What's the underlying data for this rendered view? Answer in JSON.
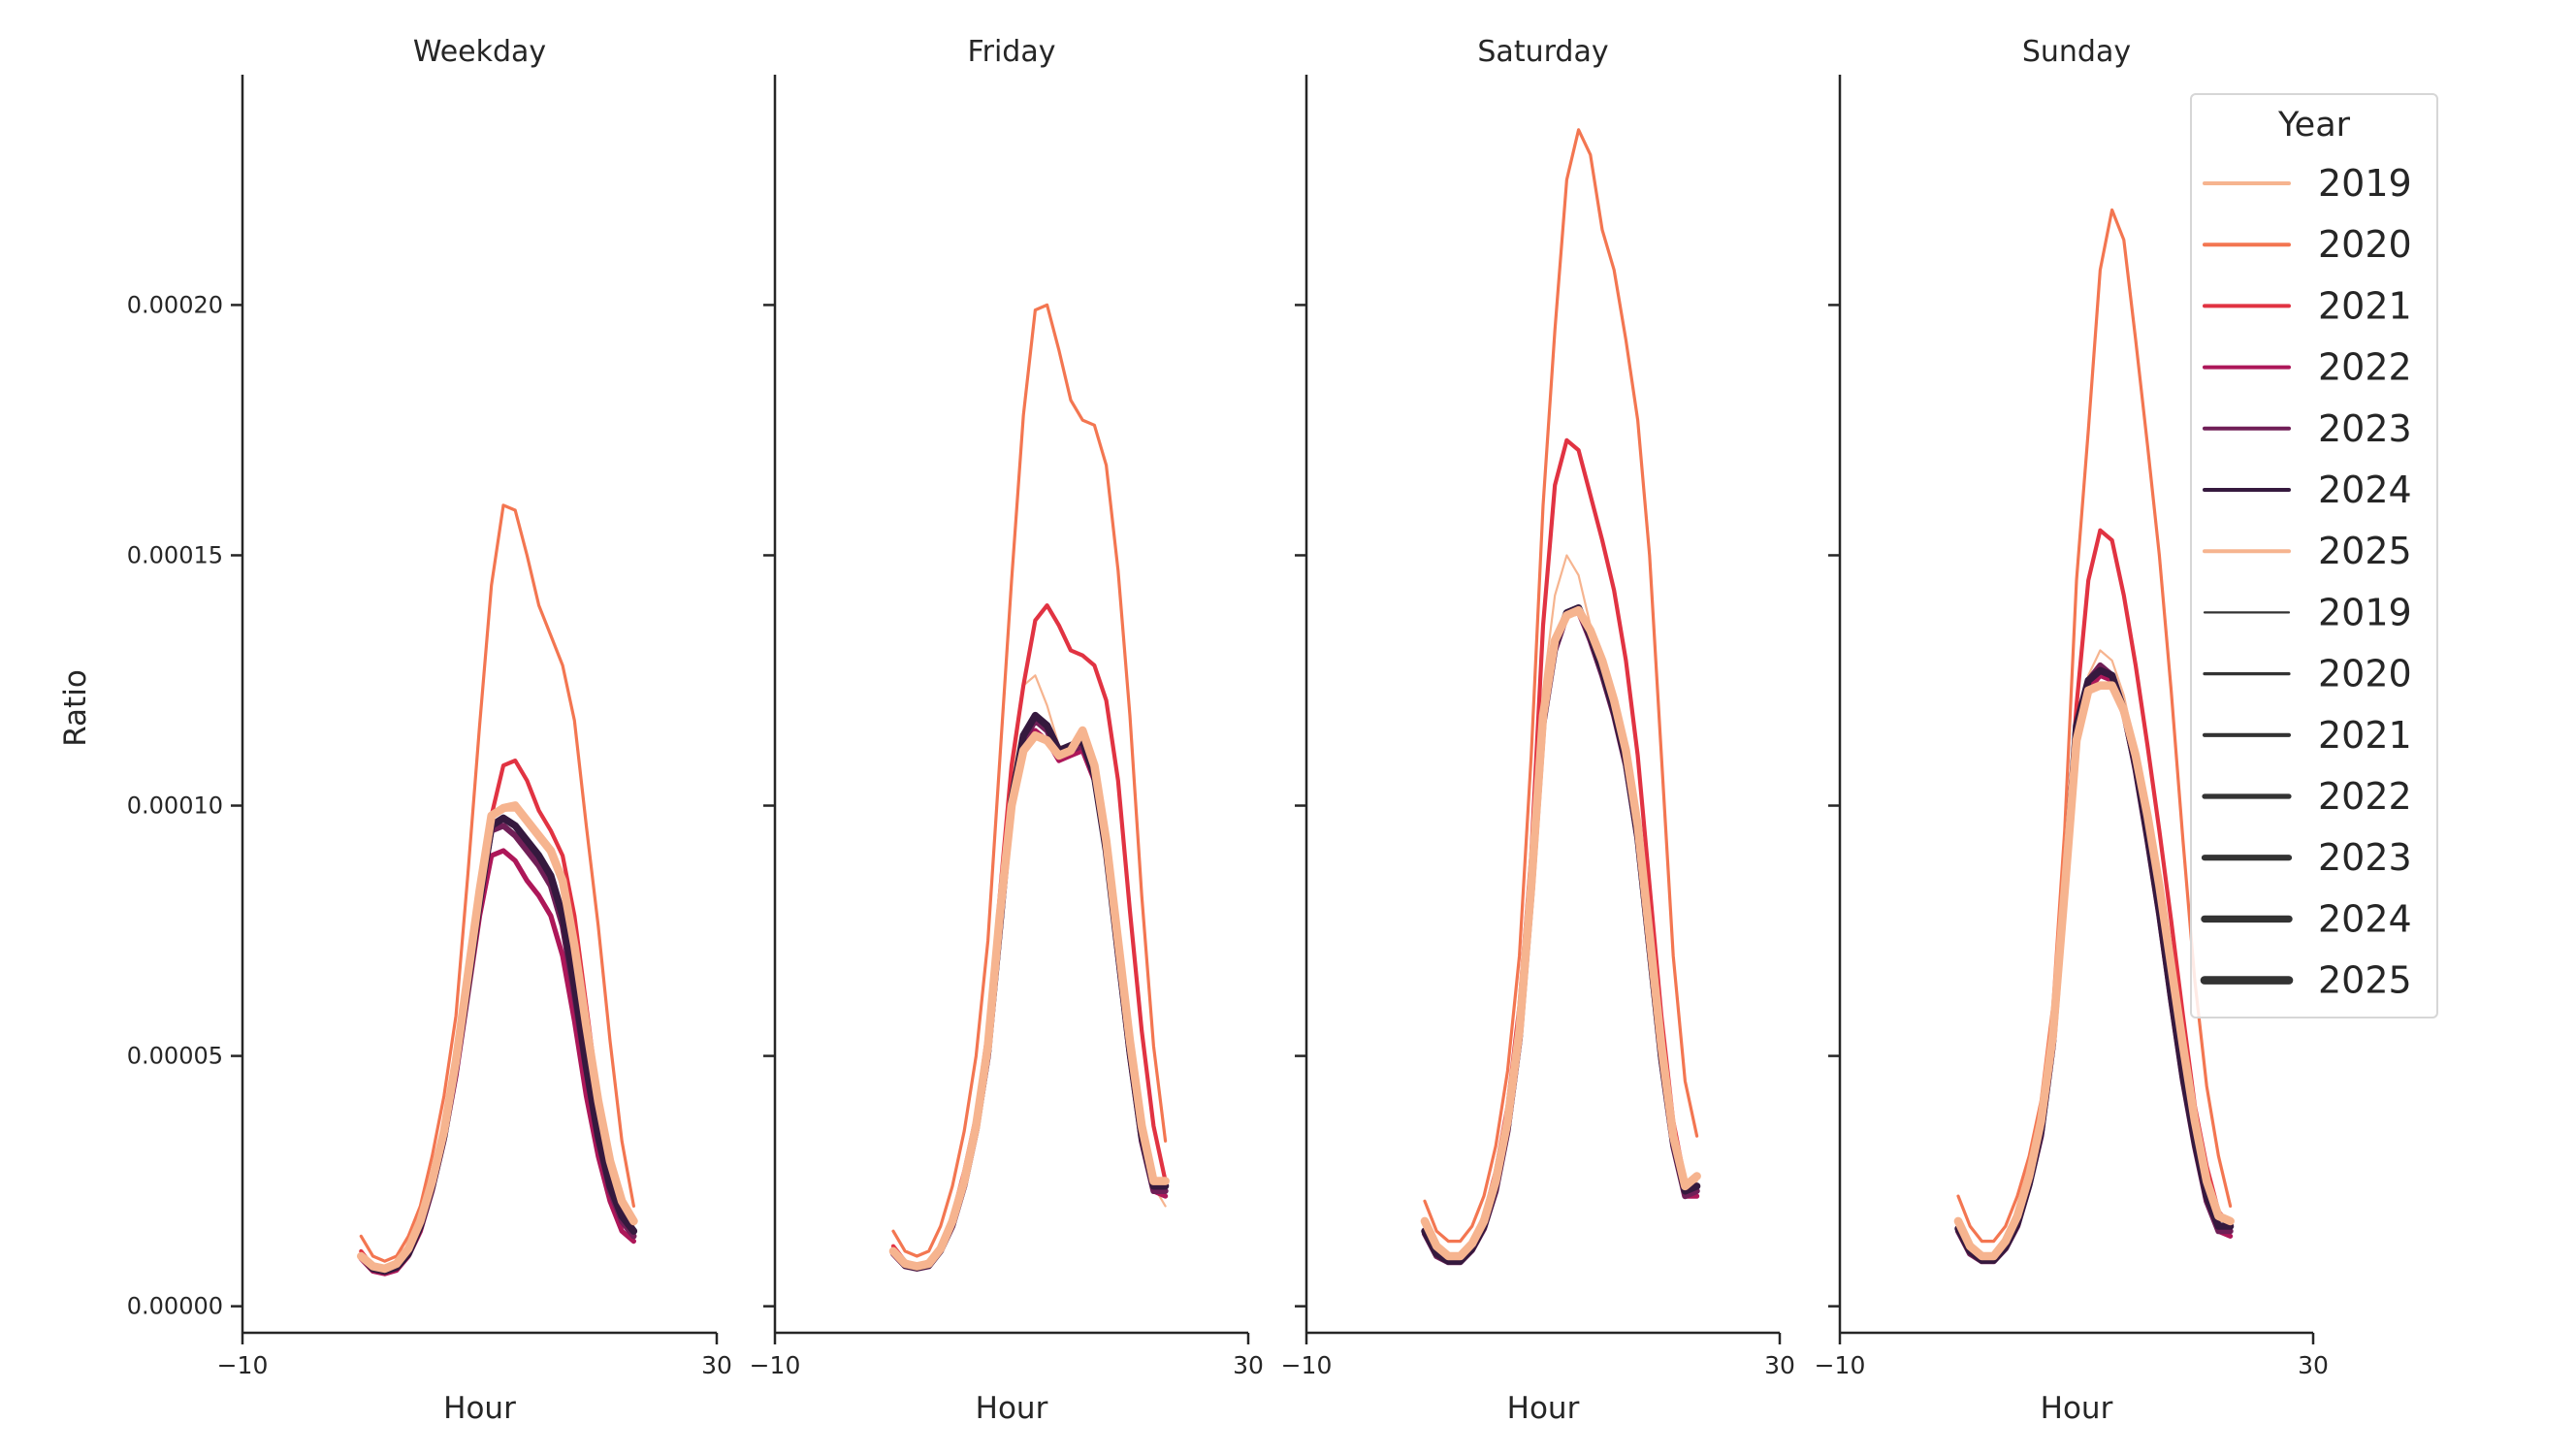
{
  "chart_data": {
    "type": "line",
    "ylabel": "Ratio",
    "xlabel": "Hour",
    "xlim": [
      -10,
      30
    ],
    "ylim": [
      -5.3e-06,
      0.000246
    ],
    "xticks": [
      -10,
      30
    ],
    "xtick_labels": [
      "−10",
      "30"
    ],
    "yticks": [
      0,
      5e-05,
      0.0001,
      0.00015,
      0.0002
    ],
    "ytick_labels": [
      "0.00000",
      "0.00005",
      "0.00010",
      "0.00015",
      "0.00020"
    ],
    "grid": false,
    "x": [
      0,
      1,
      2,
      3,
      4,
      5,
      6,
      7,
      8,
      9,
      10,
      11,
      12,
      13,
      14,
      15,
      16,
      17,
      18,
      19,
      20,
      21,
      22,
      23
    ],
    "legend": {
      "title": "Year",
      "placement": "right",
      "hue_entries": [
        "2019",
        "2020",
        "2021",
        "2022",
        "2023",
        "2024",
        "2025"
      ],
      "size_entries": [
        "2019",
        "2020",
        "2021",
        "2022",
        "2023",
        "2024",
        "2025"
      ]
    },
    "series_style": {
      "colors": [
        "#f6b48f",
        "#f37651",
        "#e13342",
        "#ad1759",
        "#701f57",
        "#35193e",
        "#f6b48f"
      ],
      "size_legend_color": "#333333"
    },
    "panels": [
      {
        "title": "Weekday",
        "series": [
          {
            "name": "2019",
            "values": [
              1e-05,
              8e-06,
              7.5e-06,
              8.5e-06,
              1.15e-05,
              1.7e-05,
              2.5e-05,
              3.5e-05,
              4.9e-05,
              6.6e-05,
              8.3e-05,
              9.8e-05,
              9.9e-05,
              9.9e-05,
              9.6e-05,
              9.3e-05,
              9e-05,
              8.4e-05,
              7.1e-05,
              5.5e-05,
              4e-05,
              2.8e-05,
              2e-05,
              1.6e-05
            ]
          },
          {
            "name": "2020",
            "values": [
              1.4e-05,
              1e-05,
              9e-06,
              1e-05,
              1.4e-05,
              2e-05,
              3e-05,
              4.2e-05,
              5.8e-05,
              8.6e-05,
              0.000116,
              0.000144,
              0.00016,
              0.000159,
              0.00015,
              0.00014,
              0.000134,
              0.000128,
              0.000117,
              9.6e-05,
              7.6e-05,
              5.3e-05,
              3.3e-05,
              2e-05
            ]
          },
          {
            "name": "2021",
            "values": [
              1.1e-05,
              8e-06,
              7e-06,
              8e-06,
              1.1e-05,
              1.6e-05,
              2.4e-05,
              3.4e-05,
              4.8e-05,
              6.5e-05,
              8.3e-05,
              9.8e-05,
              0.000108,
              0.000109,
              0.000105,
              9.9e-05,
              9.5e-05,
              9e-05,
              7.8e-05,
              6e-05,
              4.2e-05,
              2.8e-05,
              1.9e-05,
              1.5e-05
            ]
          },
          {
            "name": "2022",
            "values": [
              9.5e-06,
              7e-06,
              6.5e-06,
              7.2e-06,
              1e-05,
              1.5e-05,
              2.3e-05,
              3.3e-05,
              4.6e-05,
              6.2e-05,
              7.8e-05,
              9e-05,
              9.1e-05,
              8.9e-05,
              8.5e-05,
              8.2e-05,
              7.8e-05,
              7e-05,
              5.7e-05,
              4.2e-05,
              3e-05,
              2.1e-05,
              1.5e-05,
              1.3e-05
            ]
          },
          {
            "name": "2023",
            "values": [
              1e-05,
              7.5e-06,
              7e-06,
              7.8e-06,
              1.05e-05,
              1.6e-05,
              2.4e-05,
              3.4e-05,
              4.8e-05,
              6.4e-05,
              8.1e-05,
              9.5e-05,
              9.6e-05,
              9.4e-05,
              9.1e-05,
              8.8e-05,
              8.4e-05,
              7.6e-05,
              6.2e-05,
              4.7e-05,
              3.3e-05,
              2.3e-05,
              1.7e-05,
              1.4e-05
            ]
          },
          {
            "name": "2024",
            "values": [
              1e-05,
              7.5e-06,
              7e-06,
              7.8e-06,
              1.05e-05,
              1.6e-05,
              2.4e-05,
              3.4e-05,
              4.8e-05,
              6.4e-05,
              8.1e-05,
              9.6e-05,
              9.75e-05,
              9.6e-05,
              9.3e-05,
              9e-05,
              8.6e-05,
              7.8e-05,
              6.4e-05,
              4.8e-05,
              3.4e-05,
              2.4e-05,
              1.8e-05,
              1.5e-05
            ]
          },
          {
            "name": "2025",
            "values": [
              1e-05,
              8e-06,
              7.5e-06,
              8.5e-06,
              1.15e-05,
              1.7e-05,
              2.5e-05,
              3.5e-05,
              4.9e-05,
              6.6e-05,
              8.3e-05,
              9.8e-05,
              9.95e-05,
              0.0001,
              9.7e-05,
              9.4e-05,
              9.1e-05,
              8.5e-05,
              7.2e-05,
              5.6e-05,
              4.1e-05,
              2.9e-05,
              2.1e-05,
              1.7e-05
            ]
          }
        ]
      },
      {
        "title": "Friday",
        "series": [
          {
            "name": "2019",
            "values": [
              1.2e-05,
              9e-06,
              8.5e-06,
              9e-06,
              1.2e-05,
              1.8e-05,
              2.6e-05,
              3.7e-05,
              5.3e-05,
              8e-05,
              0.000105,
              0.000124,
              0.000126,
              0.00012,
              0.000112,
              0.000111,
              0.000114,
              0.000108,
              9.2e-05,
              7e-05,
              5e-05,
              3.4e-05,
              2.4e-05,
              2e-05
            ]
          },
          {
            "name": "2020",
            "values": [
              1.5e-05,
              1.1e-05,
              1e-05,
              1.1e-05,
              1.6e-05,
              2.4e-05,
              3.5e-05,
              5e-05,
              7.3e-05,
              0.000109,
              0.000145,
              0.000178,
              0.000199,
              0.0002,
              0.000191,
              0.000181,
              0.000177,
              0.000176,
              0.000168,
              0.000147,
              0.000118,
              8.2e-05,
              5.2e-05,
              3.3e-05
            ]
          },
          {
            "name": "2021",
            "values": [
              1.2e-05,
              9e-06,
              8e-06,
              9e-06,
              1.2e-05,
              1.8e-05,
              2.7e-05,
              3.8e-05,
              5.5e-05,
              8.2e-05,
              0.000108,
              0.000124,
              0.000137,
              0.00014,
              0.000136,
              0.000131,
              0.00013,
              0.000128,
              0.000121,
              0.000105,
              7.9e-05,
              5.5e-05,
              3.6e-05,
              2.5e-05
            ]
          },
          {
            "name": "2022",
            "values": [
              1.05e-05,
              8e-06,
              7.5e-06,
              8e-06,
              1.1e-05,
              1.6e-05,
              2.4e-05,
              3.5e-05,
              5e-05,
              7.5e-05,
              0.0001,
              0.000112,
              0.000115,
              0.000113,
              0.000109,
              0.00011,
              0.000111,
              0.000105,
              9e-05,
              7e-05,
              5e-05,
              3.3e-05,
              2.3e-05,
              2.2e-05
            ]
          },
          {
            "name": "2023",
            "values": [
              1.05e-05,
              8e-06,
              7.5e-06,
              8e-06,
              1.1e-05,
              1.6e-05,
              2.4e-05,
              3.5e-05,
              5e-05,
              7.5e-05,
              0.0001,
              0.000113,
              0.000117,
              0.000115,
              0.00011,
              0.000111,
              0.000112,
              0.000106,
              9.1e-05,
              7e-05,
              5e-05,
              3.3e-05,
              2.3e-05,
              2.3e-05
            ]
          },
          {
            "name": "2024",
            "values": [
              1.1e-05,
              8.2e-06,
              7.7e-06,
              8.2e-06,
              1.12e-05,
              1.65e-05,
              2.45e-05,
              3.55e-05,
              5.1e-05,
              7.6e-05,
              0.000101,
              0.000114,
              0.000118,
              0.000116,
              0.000111,
              0.000112,
              0.000113,
              0.000106,
              9.1e-05,
              7.1e-05,
              5.1e-05,
              3.4e-05,
              2.4e-05,
              2.4e-05
            ]
          },
          {
            "name": "2025",
            "values": [
              1.1e-05,
              8.5e-06,
              8e-06,
              8.5e-06,
              1.15e-05,
              1.7e-05,
              2.5e-05,
              3.6e-05,
              5.2e-05,
              7.8e-05,
              0.0001,
              0.000111,
              0.000114,
              0.000113,
              0.00011,
              0.000111,
              0.000115,
              0.000108,
              9.3e-05,
              7.3e-05,
              5.3e-05,
              3.6e-05,
              2.5e-05,
              2.5e-05
            ]
          }
        ]
      },
      {
        "title": "Saturday",
        "series": [
          {
            "name": "2019",
            "values": [
              1.6e-05,
              1.1e-05,
              9.5e-06,
              9.5e-06,
              1.2e-05,
              1.7e-05,
              2.6e-05,
              3.8e-05,
              5.7e-05,
              8.8e-05,
              0.000123,
              0.000142,
              0.00015,
              0.000146,
              0.000136,
              0.000129,
              0.000121,
              0.00011,
              9.4e-05,
              7.2e-05,
              5e-05,
              3.3e-05,
              2.3e-05,
              2.5e-05
            ]
          },
          {
            "name": "2020",
            "values": [
              2.1e-05,
              1.5e-05,
              1.3e-05,
              1.3e-05,
              1.6e-05,
              2.2e-05,
              3.2e-05,
              4.7e-05,
              7e-05,
              0.00011,
              0.00016,
              0.000195,
              0.000225,
              0.000235,
              0.00023,
              0.000215,
              0.000207,
              0.000193,
              0.000177,
              0.00015,
              0.00011,
              7e-05,
              4.5e-05,
              3.4e-05
            ]
          },
          {
            "name": "2021",
            "values": [
              1.7e-05,
              1.2e-05,
              1e-05,
              1e-05,
              1.3e-05,
              1.8e-05,
              2.7e-05,
              4e-05,
              6e-05,
              9e-05,
              0.000136,
              0.000164,
              0.000173,
              0.000171,
              0.000162,
              0.000153,
              0.000143,
              0.000129,
              0.00011,
              8.4e-05,
              5.8e-05,
              3.7e-05,
              2.5e-05,
              2.4e-05
            ]
          },
          {
            "name": "2022",
            "values": [
              1.45e-05,
              1e-05,
              8.8e-06,
              8.8e-06,
              1.12e-05,
              1.55e-05,
              2.3e-05,
              3.5e-05,
              5.3e-05,
              8.2e-05,
              0.000116,
              0.000131,
              0.000138,
              0.0001385,
              0.000133,
              0.000126,
              0.000118,
              0.000108,
              9.3e-05,
              7.1e-05,
              4.9e-05,
              3.2e-05,
              2.2e-05,
              2.2e-05
            ]
          },
          {
            "name": "2023",
            "values": [
              1.45e-05,
              1e-05,
              8.8e-06,
              8.8e-06,
              1.12e-05,
              1.55e-05,
              2.3e-05,
              3.5e-05,
              5.3e-05,
              8.2e-05,
              0.000116,
              0.000131,
              0.000138,
              0.000139,
              0.000133,
              0.000126,
              0.000118,
              0.000108,
              9.3e-05,
              7.1e-05,
              4.9e-05,
              3.2e-05,
              2.2e-05,
              2.3e-05
            ]
          },
          {
            "name": "2024",
            "values": [
              1.5e-05,
              1.05e-05,
              9e-06,
              9e-06,
              1.15e-05,
              1.6e-05,
              2.4e-05,
              3.6e-05,
              5.4e-05,
              8.3e-05,
              0.000117,
              0.000132,
              0.0001385,
              0.0001395,
              0.000134,
              0.000127,
              0.000119,
              0.000109,
              9.4e-05,
              7.2e-05,
              5e-05,
              3.3e-05,
              2.3e-05,
              2.4e-05
            ]
          },
          {
            "name": "2025",
            "values": [
              1.7e-05,
              1.2e-05,
              1e-05,
              1e-05,
              1.25e-05,
              1.7e-05,
              2.5e-05,
              3.7e-05,
              5.5e-05,
              8.4e-05,
              0.000118,
              0.000133,
              0.000138,
              0.000139,
              0.000135,
              0.000129,
              0.000121,
              0.000111,
              9.6e-05,
              7.4e-05,
              5.2e-05,
              3.4e-05,
              2.4e-05,
              2.6e-05
            ]
          }
        ]
      },
      {
        "title": "Sunday",
        "series": [
          {
            "name": "2019",
            "values": [
              1.7e-05,
              1.2e-05,
              1e-05,
              1e-05,
              1.3e-05,
              1.8e-05,
              2.6e-05,
              3.7e-05,
              5.4e-05,
              8.3e-05,
              0.000114,
              0.000126,
              0.000131,
              0.000129,
              0.000122,
              0.000111,
              9.8e-05,
              8.3e-05,
              6.6e-05,
              5e-05,
              3.5e-05,
              2.4e-05,
              1.7e-05,
              1.7e-05
            ]
          },
          {
            "name": "2020",
            "values": [
              2.2e-05,
              1.6e-05,
              1.3e-05,
              1.3e-05,
              1.6e-05,
              2.2e-05,
              3e-05,
              4.1e-05,
              6e-05,
              9.5e-05,
              0.000145,
              0.000175,
              0.000207,
              0.000219,
              0.000213,
              0.000193,
              0.000172,
              0.00015,
              0.000123,
              9.3e-05,
              6.5e-05,
              4.4e-05,
              3e-05,
              2e-05
            ]
          },
          {
            "name": "2021",
            "values": [
              1.7e-05,
              1.2e-05,
              1e-05,
              1e-05,
              1.3e-05,
              1.8e-05,
              2.6e-05,
              3.7e-05,
              5.5e-05,
              8.7e-05,
              0.00012,
              0.000145,
              0.000155,
              0.000153,
              0.000142,
              0.000128,
              0.000112,
              9.5e-05,
              7.7e-05,
              5.8e-05,
              4e-05,
              2.8e-05,
              1.9e-05,
              1.6e-05
            ]
          },
          {
            "name": "2022",
            "values": [
              1.5e-05,
              1.05e-05,
              9e-06,
              9e-06,
              1.15e-05,
              1.6e-05,
              2.4e-05,
              3.4e-05,
              5.2e-05,
              8.2e-05,
              0.000113,
              0.000123,
              0.000126,
              0.000125,
              0.000118,
              0.000107,
              9.3e-05,
              7.8e-05,
              6.1e-05,
              4.5e-05,
              3.2e-05,
              2.1e-05,
              1.5e-05,
              1.4e-05
            ]
          },
          {
            "name": "2023",
            "values": [
              1.5e-05,
              1.05e-05,
              9e-06,
              9e-06,
              1.15e-05,
              1.6e-05,
              2.4e-05,
              3.4e-05,
              5.2e-05,
              8.2e-05,
              0.000115,
              0.000125,
              0.000128,
              0.000126,
              0.000119,
              0.000107,
              9.3e-05,
              7.8e-05,
              6.1e-05,
              4.5e-05,
              3.2e-05,
              2.1e-05,
              1.5e-05,
              1.5e-05
            ]
          },
          {
            "name": "2024",
            "values": [
              1.55e-05,
              1.1e-05,
              9.2e-06,
              9.2e-06,
              1.18e-05,
              1.65e-05,
              2.45e-05,
              3.5e-05,
              5.3e-05,
              8.3e-05,
              0.000116,
              0.000125,
              0.000127,
              0.000126,
              0.000119,
              0.000108,
              9.4e-05,
              7.9e-05,
              6.2e-05,
              4.6e-05,
              3.3e-05,
              2.2e-05,
              1.6e-05,
              1.6e-05
            ]
          },
          {
            "name": "2025",
            "values": [
              1.7e-05,
              1.2e-05,
              1e-05,
              1e-05,
              1.3e-05,
              1.8e-05,
              2.6e-05,
              3.7e-05,
              5.4e-05,
              8.3e-05,
              0.000113,
              0.000123,
              0.000124,
              0.000124,
              0.000119,
              0.00011,
              9.8e-05,
              8.4e-05,
              6.8e-05,
              5.2e-05,
              3.7e-05,
              2.5e-05,
              1.8e-05,
              1.7e-05
            ]
          }
        ]
      }
    ]
  }
}
